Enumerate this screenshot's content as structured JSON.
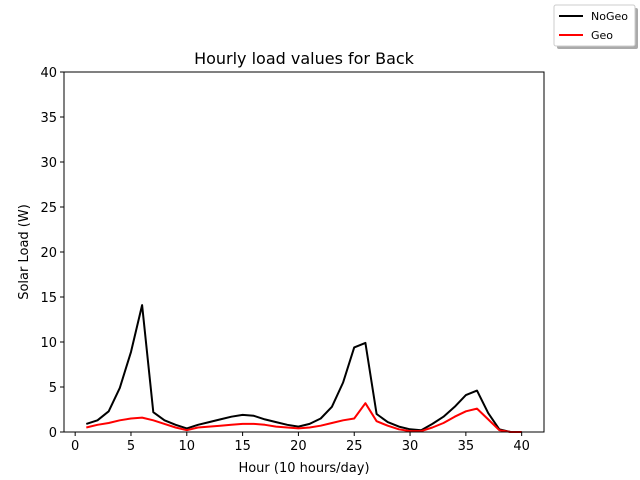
{
  "chart_data": {
    "type": "line",
    "title": "Hourly load values for Back",
    "xlabel": "Hour (10 hours/day)",
    "ylabel": "Solar Load (W)",
    "xlim": [
      -1,
      42
    ],
    "ylim": [
      0,
      40
    ],
    "xticks": [
      0,
      5,
      10,
      15,
      20,
      25,
      30,
      35,
      40
    ],
    "yticks": [
      0,
      5,
      10,
      15,
      20,
      25,
      30,
      35,
      40
    ],
    "grid": false,
    "legend_position": "top-right (outside axes)",
    "x": [
      1,
      2,
      3,
      4,
      5,
      6,
      7,
      8,
      9,
      10,
      11,
      12,
      13,
      14,
      15,
      16,
      17,
      18,
      19,
      20,
      21,
      22,
      23,
      24,
      25,
      26,
      27,
      28,
      29,
      30,
      31,
      32,
      33,
      34,
      35,
      36,
      37,
      38,
      39,
      40
    ],
    "series": [
      {
        "name": "NoGeo",
        "color": "#000000",
        "values": [
          0.9,
          1.3,
          2.3,
          4.9,
          8.9,
          14.1,
          2.2,
          1.3,
          0.8,
          0.4,
          0.8,
          1.1,
          1.4,
          1.7,
          1.9,
          1.8,
          1.4,
          1.1,
          0.8,
          0.6,
          0.9,
          1.5,
          2.8,
          5.5,
          9.4,
          9.9,
          2.0,
          1.1,
          0.6,
          0.3,
          0.2,
          0.9,
          1.7,
          2.8,
          4.1,
          4.6,
          2.1,
          0.3,
          0.0,
          0.0
        ]
      },
      {
        "name": "Geo",
        "color": "#ff0000",
        "values": [
          0.5,
          0.8,
          1.0,
          1.3,
          1.5,
          1.6,
          1.3,
          0.9,
          0.5,
          0.2,
          0.5,
          0.6,
          0.7,
          0.8,
          0.9,
          0.9,
          0.8,
          0.6,
          0.5,
          0.4,
          0.5,
          0.7,
          1.0,
          1.3,
          1.5,
          3.2,
          1.2,
          0.7,
          0.3,
          0.1,
          0.1,
          0.5,
          1.0,
          1.7,
          2.3,
          2.6,
          1.4,
          0.2,
          0.0,
          0.0
        ]
      }
    ]
  }
}
